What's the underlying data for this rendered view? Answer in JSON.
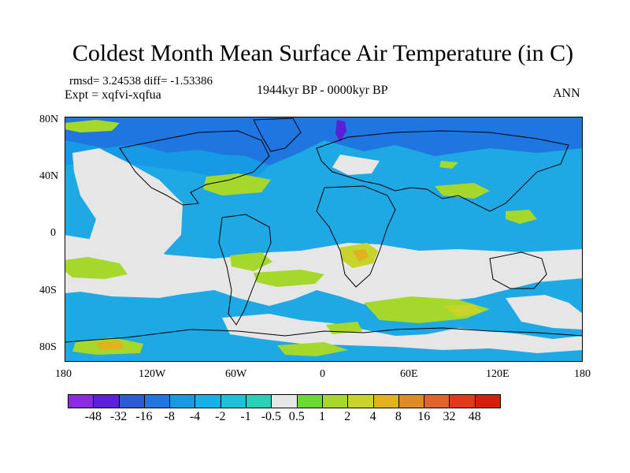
{
  "figure": {
    "title": "Coldest Month Mean Surface Air Temperature (in C)",
    "stats": "rmsd= 3.24538 diff= -1.53386",
    "experiment": "Expt = xqfvi-xqfua",
    "period": "1944kyr BP - 0000kyr BP",
    "season": "ANN"
  },
  "axes": {
    "lat_ticks": [
      "80N",
      "40N",
      "0",
      "40S",
      "80S"
    ],
    "lon_ticks": [
      "180",
      "120W",
      "60W",
      "0",
      "60E",
      "120E",
      "180"
    ]
  },
  "colorbar": {
    "colors": [
      "#8a2be2",
      "#5a1fd6",
      "#2d5bd6",
      "#1f76e0",
      "#169ae6",
      "#18b0ea",
      "#1ec2d8",
      "#28d0b8",
      "#e6e6e6",
      "#6cd834",
      "#a6d82c",
      "#c8d42a",
      "#e0b21e",
      "#e08a24",
      "#e06428",
      "#e03a18",
      "#d61e0c"
    ],
    "labels": [
      "-48",
      "-32",
      "-16",
      "-8",
      "-4",
      "-2",
      "-1",
      "-0.5",
      "0.5",
      "1",
      "2",
      "4",
      "8",
      "16",
      "32",
      "48"
    ]
  },
  "map": {
    "background_color": "#1ea8e4",
    "colors": {
      "deep_blue": "#1f76e0",
      "mid_blue": "#169ae6",
      "cyan": "#1ec2d8",
      "near_zero": "#e6e6e6",
      "light_green": "#a6d82c",
      "yellow": "#c8d42a",
      "orange": "#e0b21e",
      "purple": "#5a1fd6"
    }
  }
}
